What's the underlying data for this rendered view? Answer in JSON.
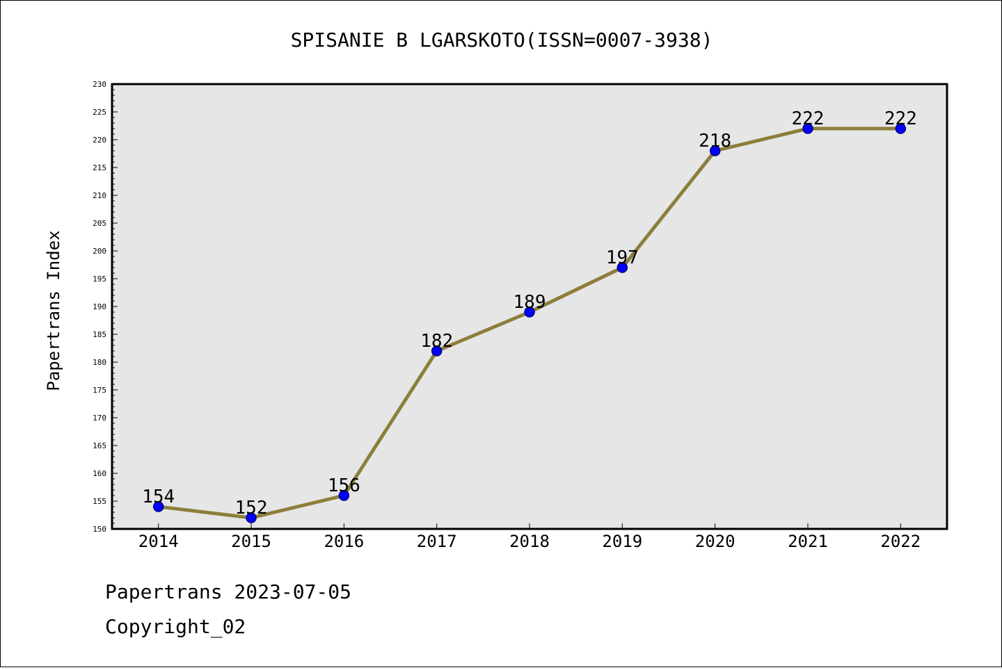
{
  "chart_data": {
    "type": "line",
    "title": "SPISANIE B LGARSKOTO(ISSN=0007-3938)",
    "xlabel": "",
    "ylabel": "Papertrans Index",
    "categories": [
      "2014",
      "2015",
      "2016",
      "2017",
      "2018",
      "2019",
      "2020",
      "2021",
      "2022"
    ],
    "series": [
      {
        "values": [
          154,
          152,
          156,
          182,
          189,
          197,
          218,
          222,
          222
        ]
      }
    ],
    "data_labels": [
      "154",
      "152",
      "156",
      "182",
      "189",
      "197",
      "218",
      "222",
      "222"
    ],
    "ylim": [
      150,
      230
    ],
    "y_major_ticks": [
      "150",
      "155",
      "160",
      "165",
      "170",
      "175",
      "180",
      "185",
      "190",
      "195",
      "200",
      "205",
      "210",
      "215",
      "220",
      "225",
      "230"
    ],
    "grid": false,
    "legend": "none",
    "colors": {
      "plot_background": "#e6e6e6",
      "line": "#8c7e3c",
      "marker_fill": "#0000ff",
      "marker_edge": "#000080",
      "axes": "#000000"
    }
  },
  "footer": {
    "line1": "Papertrans 2023-07-05",
    "line2": "Copyright_02"
  }
}
